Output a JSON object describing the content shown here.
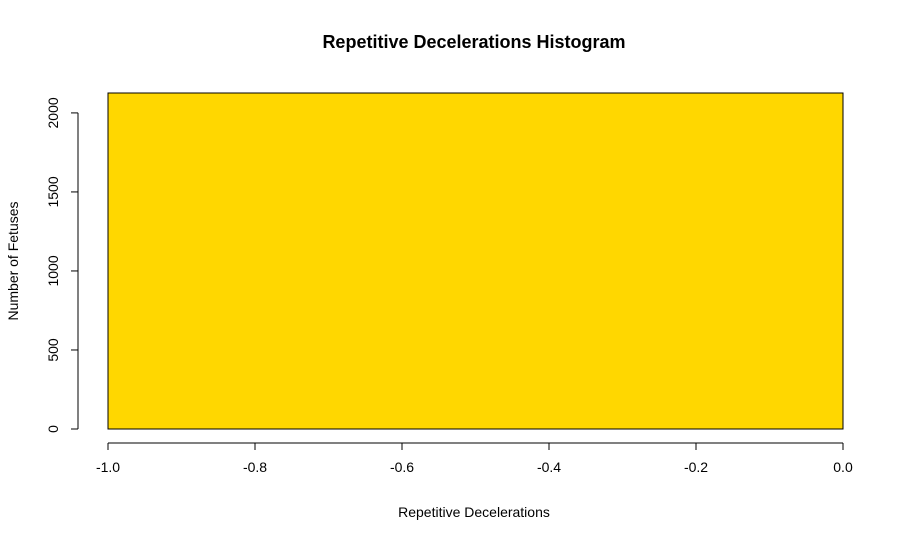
{
  "chart_data": {
    "type": "bar",
    "title": "Repetitive Decelerations Histogram",
    "xlabel": "Repetitive Decelerations",
    "ylabel": "Number of Fetuses",
    "xlim": [
      -1.0,
      0.0
    ],
    "ylim": [
      0,
      2126
    ],
    "x_ticks": [
      "-1.0",
      "-0.8",
      "-0.6",
      "-0.4",
      "-0.2",
      "0.0"
    ],
    "x_tick_values": [
      -1.0,
      -0.8,
      -0.6,
      -0.4,
      -0.2,
      0.0
    ],
    "y_ticks": [
      "0",
      "500",
      "1000",
      "1500",
      "2000"
    ],
    "y_tick_values": [
      0,
      500,
      1000,
      1500,
      2000
    ],
    "bins": [
      {
        "x0": -1.0,
        "x1": 0.0,
        "count": 2126
      }
    ],
    "bar_fill": "#FFD700",
    "bar_stroke": "#000000",
    "grid": false,
    "legend": "none"
  }
}
